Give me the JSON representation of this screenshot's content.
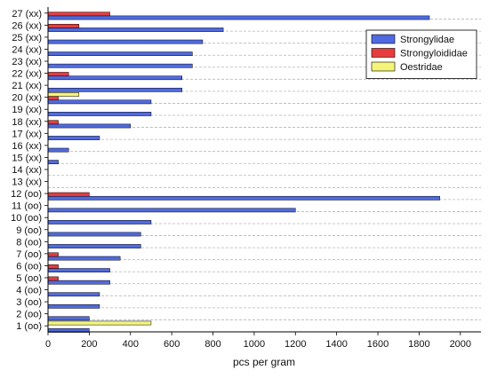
{
  "chart_data": {
    "type": "bar",
    "orientation": "horizontal",
    "title": "",
    "xlabel": "pcs per gram",
    "ylabel": "",
    "xlim": [
      0,
      2100
    ],
    "xticks": [
      "0",
      "200",
      "400",
      "600",
      "800",
      "1000",
      "1200",
      "1400",
      "1600",
      "1800",
      "2000"
    ],
    "grid": "horizontal dashed",
    "legend_position": "top-right",
    "categories": [
      "1 (oo)",
      "2 (oo)",
      "3 (oo)",
      "4 (oo)",
      "5 (oo)",
      "6 (oo)",
      "7 (oo)",
      "8 (oo)",
      "9 (oo)",
      "10 (oo)",
      "11 (oo)",
      "12 (oo)",
      "13 (xx)",
      "14 (xx)",
      "15 (xx)",
      "16 (xx)",
      "17 (xx)",
      "18 (xx)",
      "19 (xx)",
      "20 (xx)",
      "21 (xx)",
      "22 (xx)",
      "23 (xx)",
      "24 (xx)",
      "25 (xx)",
      "26 (xx)",
      "27 (xx)"
    ],
    "series": [
      {
        "name": "Strongylidae",
        "color": "#4f6ae0",
        "values": [
          200,
          200,
          250,
          250,
          300,
          300,
          350,
          450,
          450,
          500,
          1200,
          1900,
          0,
          0,
          50,
          100,
          250,
          400,
          500,
          500,
          650,
          650,
          700,
          700,
          750,
          850,
          1850
        ]
      },
      {
        "name": "Strongyloididae",
        "color": "#e83c3c",
        "values": [
          0,
          0,
          0,
          0,
          50,
          50,
          50,
          0,
          0,
          0,
          0,
          200,
          0,
          0,
          0,
          0,
          0,
          50,
          0,
          50,
          0,
          100,
          0,
          0,
          0,
          150,
          300
        ]
      },
      {
        "name": "Oestridae",
        "color": "#f4f47a",
        "values": [
          500,
          0,
          0,
          0,
          0,
          0,
          0,
          0,
          0,
          0,
          0,
          0,
          0,
          0,
          0,
          0,
          0,
          0,
          0,
          150,
          0,
          0,
          0,
          0,
          0,
          0,
          0
        ]
      }
    ]
  }
}
